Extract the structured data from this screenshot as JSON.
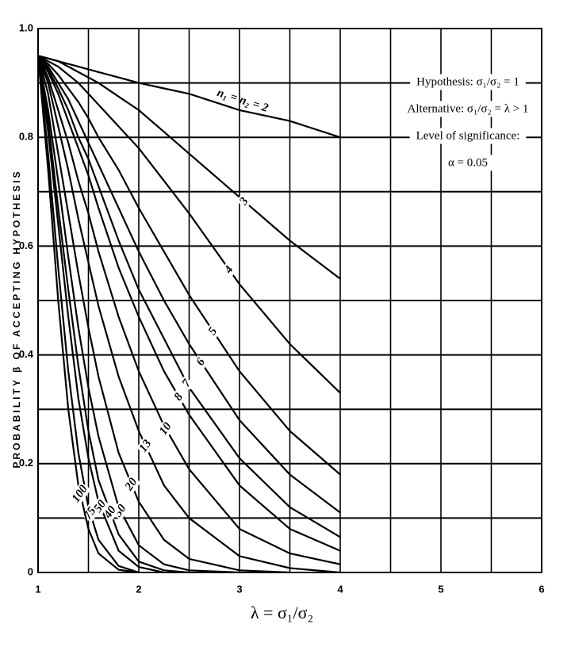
{
  "chart_data": {
    "type": "line",
    "x_label": "λ = σ₁/σ₂",
    "y_label": "PROBABILITY β OF ACCEPTING HYPOTHESIS",
    "annotations": [
      "Hypothesis: σ₁/σ₂ = 1",
      "Alternative: σ₁/σ₂ = λ > 1",
      "Level of significance:",
      "α = 0.05"
    ],
    "xlim": [
      1,
      6
    ],
    "ylim": [
      0,
      1
    ],
    "xticks": [
      1,
      2,
      3,
      4,
      5,
      6
    ],
    "yticks": [
      0,
      0.2,
      0.4,
      0.6,
      0.8,
      {
        "value": 1,
        "label": "1.0"
      }
    ],
    "x_minor_grid": [
      1.5,
      2.5,
      3.5,
      4.5,
      5.5
    ],
    "y_minor_grid": [
      0.1,
      0.3,
      0.5,
      0.7,
      0.9
    ],
    "grid": true,
    "x": [
      1,
      1.1,
      1.2,
      1.3,
      1.4,
      1.5,
      1.6,
      1.8,
      2,
      2.25,
      2.5,
      3,
      3.5,
      4
    ],
    "series": [
      {
        "name": "n₁ = n₂ = 2",
        "color": "#000000",
        "values": [
          0.95,
          0.945,
          0.94,
          0.935,
          0.93,
          0.925,
          0.92,
          0.91,
          0.9,
          0.89,
          0.88,
          0.85,
          0.83,
          0.8
        ]
      },
      {
        "name": "3",
        "color": "#000000",
        "values": [
          0.95,
          0.945,
          0.94,
          0.93,
          0.92,
          0.91,
          0.9,
          0.875,
          0.85,
          0.81,
          0.77,
          0.69,
          0.61,
          0.54
        ]
      },
      {
        "name": "4",
        "color": "#000000",
        "values": [
          0.95,
          0.94,
          0.93,
          0.915,
          0.9,
          0.88,
          0.86,
          0.82,
          0.78,
          0.72,
          0.66,
          0.53,
          0.42,
          0.33
        ]
      },
      {
        "name": "5",
        "color": "#000000",
        "values": [
          0.95,
          0.935,
          0.915,
          0.89,
          0.865,
          0.835,
          0.8,
          0.74,
          0.67,
          0.59,
          0.51,
          0.37,
          0.26,
          0.18
        ]
      },
      {
        "name": "6",
        "color": "#000000",
        "values": [
          0.95,
          0.93,
          0.9,
          0.87,
          0.83,
          0.79,
          0.75,
          0.67,
          0.59,
          0.5,
          0.42,
          0.28,
          0.18,
          0.11
        ]
      },
      {
        "name": "7",
        "color": "#000000",
        "values": [
          0.95,
          0.925,
          0.89,
          0.85,
          0.8,
          0.76,
          0.71,
          0.61,
          0.52,
          0.43,
          0.34,
          0.21,
          0.12,
          0.065
        ]
      },
      {
        "name": "8",
        "color": "#000000",
        "values": [
          0.95,
          0.92,
          0.88,
          0.83,
          0.78,
          0.73,
          0.67,
          0.56,
          0.47,
          0.37,
          0.29,
          0.16,
          0.08,
          0.04
        ]
      },
      {
        "name": "10",
        "color": "#000000",
        "values": [
          0.95,
          0.91,
          0.85,
          0.79,
          0.72,
          0.66,
          0.59,
          0.47,
          0.37,
          0.27,
          0.19,
          0.08,
          0.035,
          0.015
        ]
      },
      {
        "name": "13",
        "color": "#000000",
        "values": [
          0.95,
          0.9,
          0.82,
          0.74,
          0.65,
          0.57,
          0.49,
          0.36,
          0.26,
          0.16,
          0.1,
          0.03,
          0.008,
          0
        ]
      },
      {
        "name": "20",
        "color": "#000000",
        "values": [
          0.95,
          0.88,
          0.77,
          0.66,
          0.55,
          0.45,
          0.36,
          0.22,
          0.13,
          0.06,
          0.025,
          0.004,
          0,
          null
        ]
      },
      {
        "name": "30",
        "color": "#000000",
        "values": [
          0.95,
          0.85,
          0.72,
          0.58,
          0.45,
          0.34,
          0.25,
          0.12,
          0.05,
          0.015,
          0.004,
          0,
          null,
          null
        ]
      },
      {
        "name": "40",
        "color": "#000000",
        "values": [
          0.95,
          0.83,
          0.67,
          0.52,
          0.38,
          0.26,
          0.17,
          0.07,
          0.02,
          0.004,
          0,
          null,
          null,
          null
        ]
      },
      {
        "name": "50",
        "color": "#000000",
        "values": [
          0.95,
          0.81,
          0.64,
          0.47,
          0.32,
          0.21,
          0.13,
          0.04,
          0.01,
          0,
          null,
          null,
          null,
          null
        ]
      },
      {
        "name": "75",
        "color": "#000000",
        "values": [
          0.95,
          0.77,
          0.56,
          0.37,
          0.22,
          0.12,
          0.06,
          0.012,
          0,
          null,
          null,
          null,
          null,
          null
        ]
      },
      {
        "name": "100",
        "color": "#000000",
        "values": [
          0.95,
          0.74,
          0.5,
          0.3,
          0.16,
          0.08,
          0.035,
          0.005,
          0,
          null,
          null,
          null,
          null,
          null
        ]
      }
    ]
  }
}
